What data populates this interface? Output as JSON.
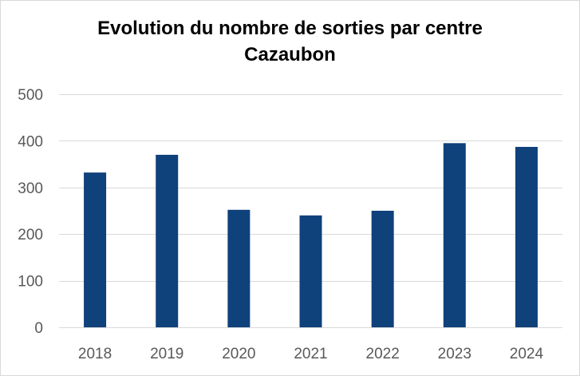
{
  "chart_data": {
    "type": "bar",
    "title": "Evolution du nombre de sorties par centre",
    "subtitle": "Cazaubon",
    "xlabel": "",
    "ylabel": "",
    "categories": [
      "2018",
      "2019",
      "2020",
      "2021",
      "2022",
      "2023",
      "2024"
    ],
    "values": [
      332,
      370,
      252,
      240,
      250,
      395,
      387
    ],
    "ylim": [
      0,
      500
    ],
    "yticks": [
      0,
      100,
      200,
      300,
      400,
      500
    ],
    "grid": true,
    "legend": "none",
    "bar_color": "#0f417b",
    "gridline_color": "#d9d9d9"
  }
}
